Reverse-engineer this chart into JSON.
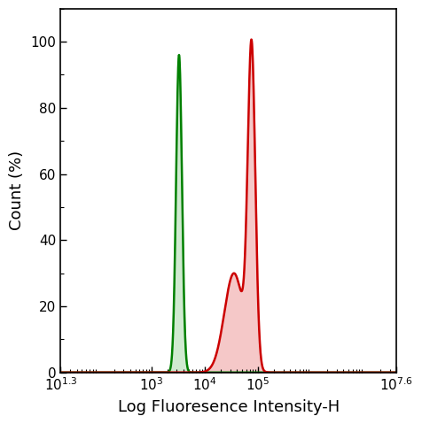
{
  "xlabel": "Log Fluoresence Intensity-H",
  "ylabel": "Count (%)",
  "xlim_log": [
    1.3,
    7.6
  ],
  "ylim": [
    0,
    110
  ],
  "yticks": [
    0,
    20,
    40,
    60,
    80,
    100
  ],
  "green_peak_log": 3.52,
  "green_sigma_log": 0.055,
  "green_height": 96,
  "red_peak_log": 4.88,
  "red_sigma_log": 0.07,
  "red_height": 95,
  "red_shoulder_log": 4.55,
  "red_shoulder_sigma": 0.18,
  "red_shoulder_height": 30,
  "line_color_green": "#008000",
  "fill_color_green": "#d0ead0",
  "line_color_red": "#cc0000",
  "fill_color_red": "#f5c8c8",
  "background_color": "#ffffff",
  "axis_linewidth": 1.2,
  "curve_linewidth": 1.8,
  "tick_labelsize": 11,
  "xlabel_fontsize": 13,
  "ylabel_fontsize": 13
}
